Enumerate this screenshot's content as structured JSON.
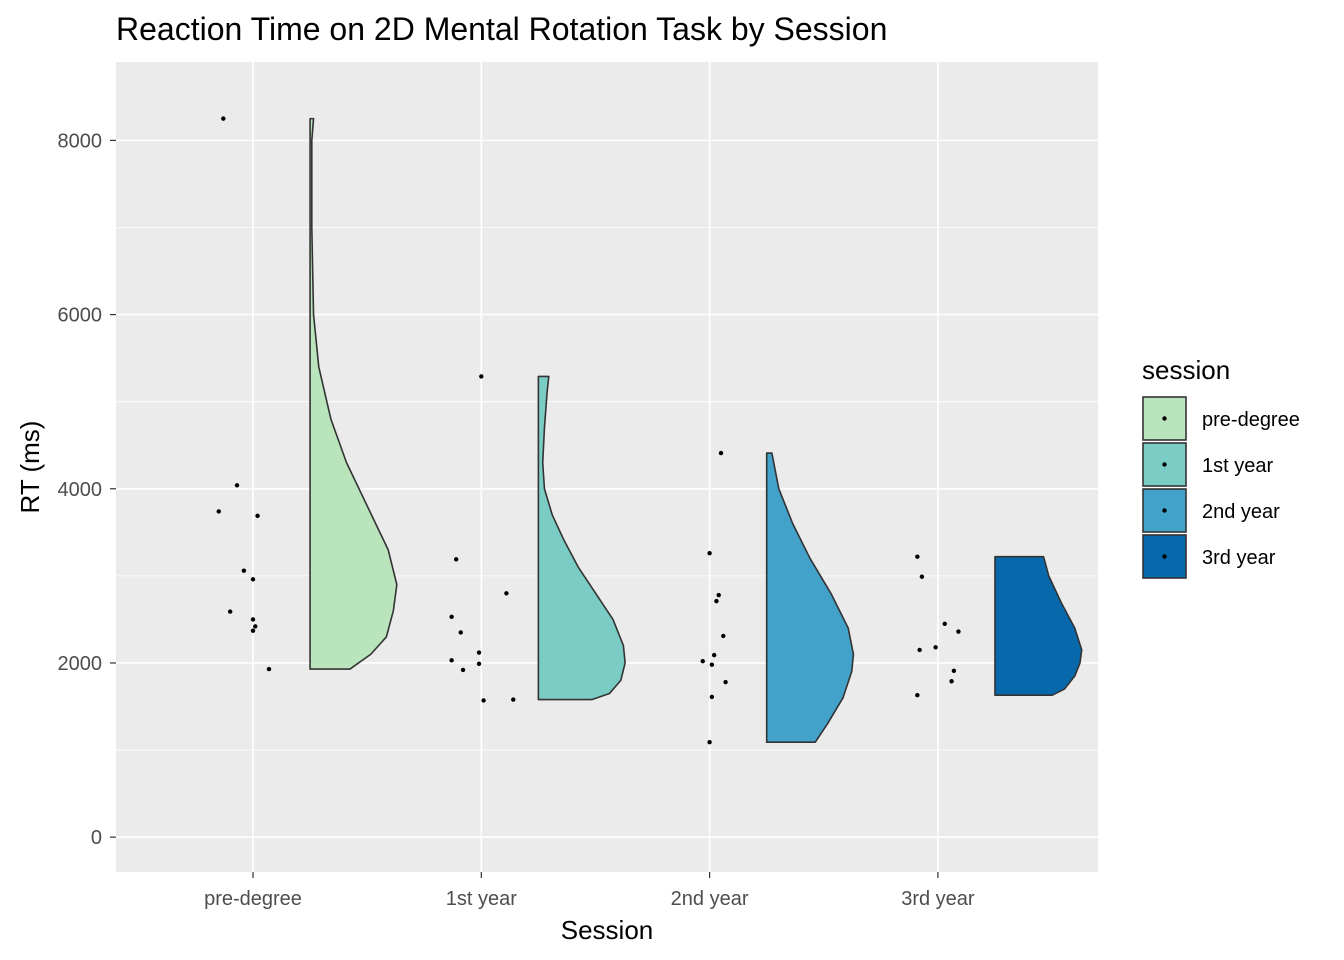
{
  "chart_data": {
    "type": "raincloud",
    "title": "Reaction Time on 2D Mental Rotation Task by Session",
    "xlabel": "Session",
    "ylabel": "RT (ms)",
    "categories": [
      "pre-degree",
      "1st year",
      "2nd year",
      "3rd year"
    ],
    "ylim": [
      -400,
      8900
    ],
    "yticks": [
      0,
      2000,
      4000,
      6000,
      8000
    ],
    "grid": true,
    "legend": {
      "title": "session",
      "position": "right",
      "entries": [
        {
          "label": "pre-degree",
          "color": "#bae4bc"
        },
        {
          "label": "1st year",
          "color": "#7bccc4"
        },
        {
          "label": "2nd year",
          "color": "#43a2ca"
        },
        {
          "label": "3rd year",
          "color": "#0868ac"
        }
      ]
    },
    "series": [
      {
        "category": "pre-degree",
        "color": "#bae4bc",
        "points": [
          {
            "x_jitter": -0.13,
            "y": 8250
          },
          {
            "x_jitter": -0.15,
            "y": 3740
          },
          {
            "x_jitter": -0.07,
            "y": 4040
          },
          {
            "x_jitter": 0.02,
            "y": 3690
          },
          {
            "x_jitter": -0.04,
            "y": 3060
          },
          {
            "x_jitter": 0.0,
            "y": 2960
          },
          {
            "x_jitter": -0.1,
            "y": 2590
          },
          {
            "x_jitter": 0.0,
            "y": 2500
          },
          {
            "x_jitter": 0.01,
            "y": 2420
          },
          {
            "x_jitter": 0.0,
            "y": 2370
          },
          {
            "x_jitter": 0.07,
            "y": 1930
          }
        ],
        "density": [
          [
            1930,
            0.46
          ],
          [
            2100,
            0.7
          ],
          [
            2300,
            0.88
          ],
          [
            2600,
            0.96
          ],
          [
            2900,
            1.0
          ],
          [
            3300,
            0.9
          ],
          [
            3800,
            0.66
          ],
          [
            4300,
            0.42
          ],
          [
            4800,
            0.24
          ],
          [
            5400,
            0.1
          ],
          [
            6000,
            0.04
          ],
          [
            7000,
            0.02
          ],
          [
            8000,
            0.02
          ],
          [
            8250,
            0.04
          ]
        ]
      },
      {
        "category": "1st year",
        "color": "#7bccc4",
        "points": [
          {
            "x_jitter": 0.0,
            "y": 5290
          },
          {
            "x_jitter": -0.11,
            "y": 3190
          },
          {
            "x_jitter": 0.11,
            "y": 2800
          },
          {
            "x_jitter": -0.13,
            "y": 2530
          },
          {
            "x_jitter": -0.09,
            "y": 2350
          },
          {
            "x_jitter": -0.01,
            "y": 2120
          },
          {
            "x_jitter": -0.13,
            "y": 2030
          },
          {
            "x_jitter": -0.01,
            "y": 1990
          },
          {
            "x_jitter": -0.08,
            "y": 1920
          },
          {
            "x_jitter": 0.01,
            "y": 1570
          },
          {
            "x_jitter": 0.14,
            "y": 1580
          }
        ],
        "density": [
          [
            1580,
            0.62
          ],
          [
            1650,
            0.82
          ],
          [
            1800,
            0.95
          ],
          [
            2000,
            1.0
          ],
          [
            2200,
            0.98
          ],
          [
            2500,
            0.86
          ],
          [
            2800,
            0.66
          ],
          [
            3100,
            0.46
          ],
          [
            3400,
            0.3
          ],
          [
            3700,
            0.16
          ],
          [
            4000,
            0.07
          ],
          [
            4300,
            0.05
          ],
          [
            4700,
            0.07
          ],
          [
            5100,
            0.1
          ],
          [
            5290,
            0.12
          ]
        ]
      },
      {
        "category": "2nd year",
        "color": "#43a2ca",
        "points": [
          {
            "x_jitter": 0.05,
            "y": 4410
          },
          {
            "x_jitter": 0.0,
            "y": 3260
          },
          {
            "x_jitter": 0.04,
            "y": 2780
          },
          {
            "x_jitter": 0.03,
            "y": 2710
          },
          {
            "x_jitter": 0.06,
            "y": 2310
          },
          {
            "x_jitter": 0.02,
            "y": 2090
          },
          {
            "x_jitter": -0.03,
            "y": 2020
          },
          {
            "x_jitter": 0.01,
            "y": 1980
          },
          {
            "x_jitter": 0.07,
            "y": 1780
          },
          {
            "x_jitter": 0.01,
            "y": 1610
          },
          {
            "x_jitter": 0.0,
            "y": 1090
          }
        ],
        "density": [
          [
            1090,
            0.56
          ],
          [
            1300,
            0.7
          ],
          [
            1600,
            0.88
          ],
          [
            1900,
            0.98
          ],
          [
            2100,
            1.0
          ],
          [
            2400,
            0.94
          ],
          [
            2800,
            0.74
          ],
          [
            3200,
            0.5
          ],
          [
            3600,
            0.3
          ],
          [
            4000,
            0.14
          ],
          [
            4410,
            0.06
          ]
        ]
      },
      {
        "category": "3rd year",
        "color": "#0868ac",
        "points": [
          {
            "x_jitter": -0.09,
            "y": 3220
          },
          {
            "x_jitter": -0.07,
            "y": 2990
          },
          {
            "x_jitter": 0.03,
            "y": 2450
          },
          {
            "x_jitter": 0.09,
            "y": 2360
          },
          {
            "x_jitter": -0.01,
            "y": 2180
          },
          {
            "x_jitter": -0.08,
            "y": 2150
          },
          {
            "x_jitter": 0.07,
            "y": 1910
          },
          {
            "x_jitter": 0.06,
            "y": 1790
          },
          {
            "x_jitter": -0.09,
            "y": 1630
          }
        ],
        "density": [
          [
            1630,
            0.66
          ],
          [
            1700,
            0.8
          ],
          [
            1850,
            0.92
          ],
          [
            2000,
            0.98
          ],
          [
            2150,
            1.0
          ],
          [
            2400,
            0.92
          ],
          [
            2700,
            0.76
          ],
          [
            3000,
            0.62
          ],
          [
            3220,
            0.56
          ]
        ]
      }
    ]
  }
}
